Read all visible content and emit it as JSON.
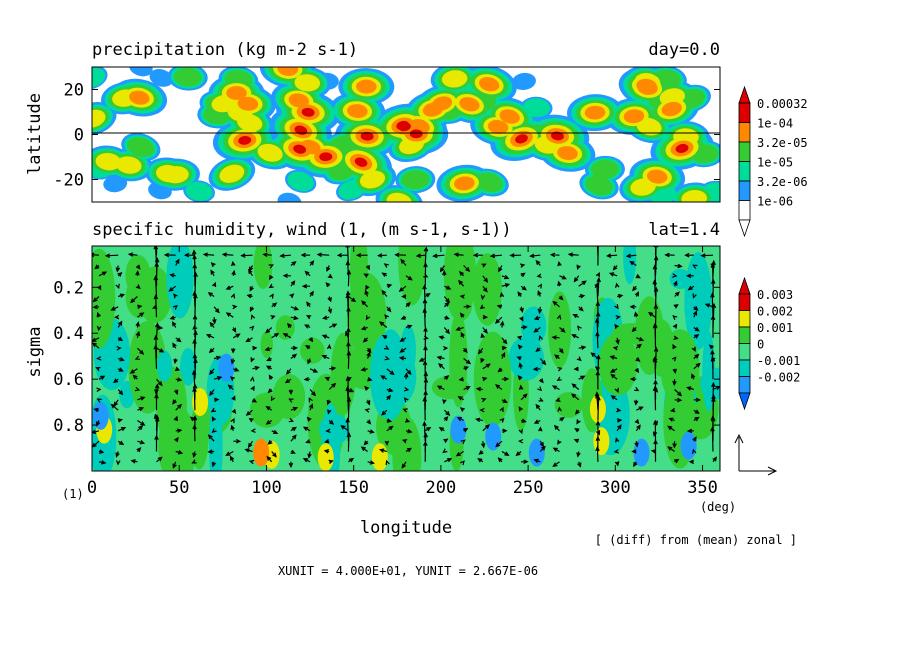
{
  "figure": {
    "note": "[ (diff) from (mean) zonal ]",
    "units_line": "XUNIT = 4.000E+01, YUNIT = 2.667E-06",
    "frame_label": "(1)"
  },
  "chart_data": [
    {
      "type": "heatmap",
      "title": "precipitation (kg m-2 s-1)",
      "title_right": "day=0.0",
      "ylabel": "latitude",
      "xlim": [
        0,
        360
      ],
      "ylim": [
        -30,
        30
      ],
      "y_ticks": [
        20,
        0,
        -20
      ],
      "y_tick_labels": [
        "20",
        "0",
        "-20"
      ],
      "zero_line": true,
      "levels": [
        "0.00032",
        "1e-04",
        "3.2e-05",
        "1e-05",
        "3.2e-06",
        "1e-06"
      ],
      "level_colors": [
        "#dd0000",
        "#ff8800",
        "#e8e800",
        "#33cc33",
        "#00dd99",
        "#2299ff"
      ],
      "colorbar_below": "#ffffff",
      "colorbar_above": "#dd0000"
    },
    {
      "type": "heatmap",
      "title": "specific humidity, wind (1, (m s-1, s-1))",
      "title_right": "lat=1.4",
      "ylabel": "sigma",
      "xlabel": "longitude",
      "xunit": "(deg)",
      "xlim": [
        0,
        360
      ],
      "ylim": [
        1.0,
        0.02
      ],
      "x_ticks": [
        0,
        50,
        100,
        150,
        200,
        250,
        300,
        350
      ],
      "x_tick_labels": [
        "0",
        "50",
        "100",
        "150",
        "200",
        "250",
        "300",
        "350"
      ],
      "y_ticks": [
        0.2,
        0.4,
        0.6,
        0.8
      ],
      "y_tick_labels": [
        "0.2",
        "0.4",
        "0.6",
        "0.8"
      ],
      "levels": [
        "0.003",
        "0.002",
        "0.001",
        "0",
        "-0.001",
        "-0.002"
      ],
      "level_colors": [
        "#ff8800",
        "#e8e800",
        "#33cc33",
        "#44dd88",
        "#00ccbb",
        "#2299ff"
      ],
      "colorbar_above": "#dd0000",
      "colorbar_below": "#0066ff",
      "vectors": "wind",
      "reference_vector": true
    }
  ]
}
